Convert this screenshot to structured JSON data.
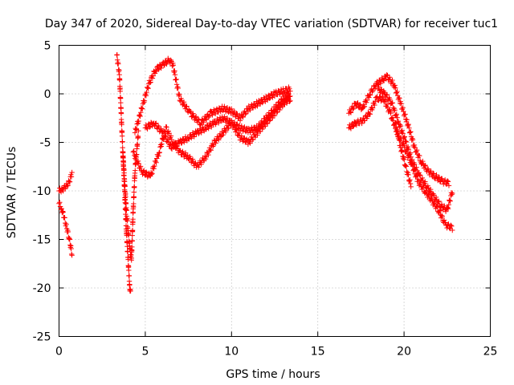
{
  "chart_data": {
    "type": "scatter",
    "title": "Day 347 of 2020, Sidereal Day-to-day VTEC variation (SDTVAR) for receiver tuc1",
    "xlabel": "GPS time / hours",
    "ylabel": "SDTVAR / TECUs",
    "xlim": [
      0,
      25
    ],
    "ylim": [
      -25,
      5
    ],
    "xticks": [
      0,
      5,
      10,
      15,
      20,
      25
    ],
    "yticks": [
      -25,
      -20,
      -15,
      -10,
      -5,
      0,
      5
    ],
    "xtick_labels": [
      "0",
      "5",
      "10",
      "15",
      "20",
      "25"
    ],
    "ytick_labels": [
      "-25",
      "-20",
      "-15",
      "-10",
      "-5",
      "0",
      "5"
    ],
    "grid": true,
    "marker": "plus",
    "color": "#ff0000",
    "series": [
      {
        "name": "early-upper",
        "x": [
          0.0,
          0.2,
          0.4,
          0.6,
          0.75
        ],
        "y": [
          -10.0,
          -9.8,
          -9.6,
          -9.0,
          -8.2
        ]
      },
      {
        "name": "early-lower",
        "x": [
          0.0,
          0.15,
          0.3,
          0.45,
          0.6,
          0.75
        ],
        "y": [
          -11.3,
          -11.8,
          -12.8,
          -13.8,
          -15.0,
          -16.5
        ]
      },
      {
        "name": "spike-a",
        "x": [
          3.35,
          3.5,
          3.6,
          3.7,
          3.8,
          3.9,
          4.0,
          4.1,
          4.15
        ],
        "y": [
          4.0,
          2.0,
          -2.0,
          -6.0,
          -10.0,
          -14.0,
          -17.0,
          -20.0,
          -20.5
        ]
      },
      {
        "name": "spike-b",
        "x": [
          3.7,
          3.8,
          3.9,
          4.0,
          4.1,
          4.2,
          4.3,
          4.4,
          4.6
        ],
        "y": [
          -6.0,
          -9.0,
          -12.0,
          -14.0,
          -16.0,
          -17.0,
          -12.0,
          -8.0,
          -4.0
        ]
      },
      {
        "name": "arc-upper",
        "x": [
          4.4,
          4.8,
          5.2,
          5.6,
          6.0,
          6.4,
          6.6,
          7.0,
          7.6,
          8.2,
          8.8,
          9.5,
          10.0,
          10.5,
          11.0,
          11.5,
          12.0,
          12.5,
          13.0,
          13.4
        ],
        "y": [
          -4.0,
          -1.5,
          1.0,
          2.5,
          3.0,
          3.5,
          3.0,
          -0.5,
          -2.0,
          -3.0,
          -2.0,
          -1.5,
          -1.8,
          -2.5,
          -1.5,
          -1.0,
          -0.5,
          0.0,
          0.3,
          0.5
        ]
      },
      {
        "name": "arc-lower",
        "x": [
          4.3,
          4.8,
          5.3,
          5.8,
          6.2,
          6.6,
          7.0,
          7.5,
          8.0,
          8.5,
          9.0,
          9.5,
          10.0,
          10.5,
          11.0,
          11.5,
          12.0,
          12.5,
          13.0,
          13.4
        ],
        "y": [
          -6.0,
          -8.0,
          -8.5,
          -6.0,
          -3.5,
          -5.0,
          -6.0,
          -6.5,
          -7.5,
          -6.5,
          -5.0,
          -4.0,
          -3.0,
          -4.5,
          -5.0,
          -4.0,
          -3.0,
          -2.0,
          -1.0,
          -0.5
        ]
      },
      {
        "name": "arc-mid",
        "x": [
          5.0,
          5.5,
          6.0,
          6.5,
          7.0,
          7.5,
          8.0,
          8.5,
          9.0,
          9.5,
          10.0,
          10.5,
          11.0,
          11.5,
          12.0,
          12.5,
          13.0,
          13.4
        ],
        "y": [
          -3.5,
          -3.0,
          -4.0,
          -5.5,
          -5.0,
          -4.5,
          -4.0,
          -3.5,
          -3.0,
          -2.5,
          -3.0,
          -3.5,
          -3.8,
          -3.5,
          -2.5,
          -1.5,
          -0.5,
          0.0
        ]
      },
      {
        "name": "late-upper",
        "x": [
          16.8,
          17.2,
          17.6,
          18.0,
          18.4,
          18.8,
          19.0,
          19.4,
          19.8,
          20.2,
          20.6,
          21.0,
          21.4,
          21.8,
          22.2,
          22.6
        ],
        "y": [
          -2.0,
          -1.0,
          -1.5,
          0.0,
          1.0,
          1.5,
          1.8,
          1.0,
          -1.0,
          -3.0,
          -5.5,
          -7.0,
          -8.0,
          -8.5,
          -9.0,
          -9.2
        ]
      },
      {
        "name": "late-lower",
        "x": [
          16.8,
          17.2,
          17.6,
          18.0,
          18.4,
          18.8,
          19.2,
          19.6,
          20.0,
          20.4,
          20.8,
          21.2,
          21.6,
          22.0,
          22.4,
          22.8
        ],
        "y": [
          -3.5,
          -3.0,
          -2.8,
          -2.0,
          -0.5,
          -0.5,
          -2.0,
          -4.0,
          -5.5,
          -7.0,
          -9.0,
          -10.0,
          -11.0,
          -12.0,
          -13.5,
          -13.8
        ]
      },
      {
        "name": "late-mid",
        "x": [
          18.5,
          18.9,
          19.3,
          19.7,
          20.1,
          20.5,
          20.9,
          21.3,
          21.7,
          22.1,
          22.5,
          22.8
        ],
        "y": [
          0.5,
          0.0,
          -1.0,
          -3.0,
          -5.0,
          -7.0,
          -8.5,
          -9.5,
          -10.5,
          -11.5,
          -12.0,
          -10.0
        ]
      },
      {
        "name": "late-branch",
        "x": [
          19.5,
          19.8,
          20.1,
          20.4
        ],
        "y": [
          -3.0,
          -5.5,
          -7.5,
          -9.5
        ]
      }
    ]
  }
}
